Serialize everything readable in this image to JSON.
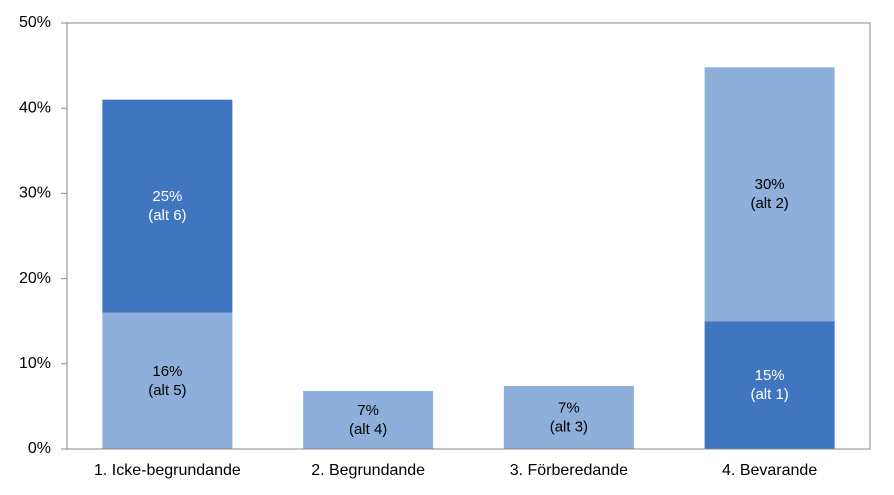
{
  "chart_data": {
    "type": "stacked-bar",
    "categories": [
      "1. Icke-begrundande",
      "2. Begrundande",
      "3. Förberedande",
      "4. Bevarande"
    ],
    "stacks": [
      {
        "values": [
          16,
          25
        ],
        "value_labels": [
          "16%",
          "25%"
        ],
        "notes": [
          "(alt 5)",
          "(alt 6)"
        ],
        "colors": [
          "#8eafd9",
          "#3f76bf"
        ]
      },
      {
        "values": [
          6.8
        ],
        "value_labels": [
          "7%"
        ],
        "notes": [
          "(alt 4)"
        ],
        "colors": [
          "#8eafd9"
        ]
      },
      {
        "values": [
          7.4
        ],
        "value_labels": [
          "7%"
        ],
        "notes": [
          "(alt 3)"
        ],
        "colors": [
          "#8eafd9"
        ]
      },
      {
        "values": [
          15,
          29.8
        ],
        "value_labels": [
          "15%",
          "30%"
        ],
        "notes": [
          "(alt 1)",
          "(alt 2)"
        ],
        "colors": [
          "#3f76bf",
          "#8eafd9"
        ]
      }
    ],
    "ylim": [
      0,
      50
    ],
    "yticks": [
      {
        "value": 0,
        "label": "0%"
      },
      {
        "value": 10,
        "label": "10%"
      },
      {
        "value": 20,
        "label": "20%"
      },
      {
        "value": 30,
        "label": "30%"
      },
      {
        "value": 40,
        "label": "40%"
      },
      {
        "value": 50,
        "label": "50%"
      }
    ]
  }
}
